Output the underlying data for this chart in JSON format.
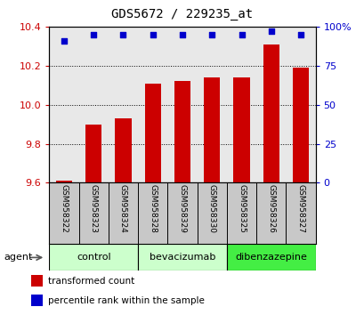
{
  "title": "GDS5672 / 229235_at",
  "samples": [
    "GSM958322",
    "GSM958323",
    "GSM958324",
    "GSM958328",
    "GSM958329",
    "GSM958330",
    "GSM958325",
    "GSM958326",
    "GSM958327"
  ],
  "red_values": [
    9.61,
    9.9,
    9.93,
    10.11,
    10.12,
    10.14,
    10.14,
    10.31,
    10.19
  ],
  "blue_values": [
    91,
    95,
    95,
    95,
    95,
    95,
    95,
    97,
    95
  ],
  "ylim_left": [
    9.6,
    10.4
  ],
  "ylim_right": [
    0,
    100
  ],
  "yticks_left": [
    9.6,
    9.8,
    10.0,
    10.2,
    10.4
  ],
  "yticks_right": [
    0,
    25,
    50,
    75,
    100
  ],
  "bar_color": "#cc0000",
  "dot_color": "#0000cc",
  "bar_width": 0.55,
  "plot_bg_color": "#e8e8e8",
  "bg_color": "#ffffff",
  "tick_label_color_left": "#cc0000",
  "tick_label_color_right": "#0000cc",
  "sample_label_bg": "#c8c8c8",
  "group_data": [
    {
      "label": "control",
      "start": 0,
      "end": 2,
      "color": "#ccffcc"
    },
    {
      "label": "bevacizumab",
      "start": 3,
      "end": 5,
      "color": "#ccffcc"
    },
    {
      "label": "dibenzazepine",
      "start": 6,
      "end": 8,
      "color": "#44ee44"
    }
  ],
  "legend_items": [
    {
      "label": "transformed count",
      "color": "#cc0000"
    },
    {
      "label": "percentile rank within the sample",
      "color": "#0000cc"
    }
  ]
}
